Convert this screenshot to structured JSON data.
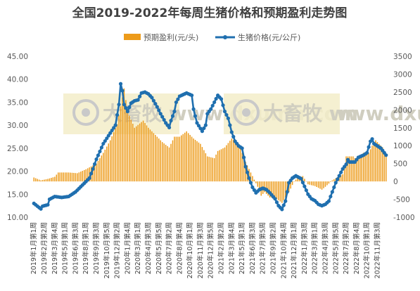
{
  "chart_data": {
    "type": "bar+line",
    "title": "全国2019-2022年每周生猪价格和预期盈利走势图",
    "watermark": "大畜牧 www.dxumu.com",
    "legend": {
      "position": "top",
      "bar_label": "预期盈利(元/头)",
      "line_label": "生猪价格(元/公斤)"
    },
    "y_left": {
      "ticks": [
        "10.00",
        "15.00",
        "20.00",
        "25.00",
        "30.00",
        "35.00",
        "40.00",
        "45.00"
      ],
      "min": 10,
      "max": 45
    },
    "y_right": {
      "ticks": [
        "-1000",
        "-500",
        "0",
        "500",
        "1000",
        "1500",
        "2000",
        "2500",
        "3000",
        "3500"
      ],
      "min": -1000,
      "max": 3500
    },
    "x_tick_labels": [
      "2019年1月第1周",
      "2019年2月第2周",
      "2019年3月第4周",
      "2019年5月第1周",
      "2019年6月第3周",
      "2019年8月第1周",
      "2019年9月第3周",
      "2019年10月第5周",
      "2019年12月第2周",
      "2020年1月第4周",
      "2020年3月第1周",
      "2020年4月第3周",
      "2020年5月第5周",
      "2020年7月第2周",
      "2020年8月第4周",
      "2020年10月第1周",
      "2020年11月第3周",
      "2020年12月第5周",
      "2021年2月第2周",
      "2021年3月第4周",
      "2021年5月第1周",
      "2021年6月第3周",
      "2021年7月第5周",
      "2021年9月第2周",
      "2021年10月第4周",
      "2021年12月第1周",
      "2022年1月第3周",
      "2022年3月第1周",
      "2022年4月第3周",
      "2022年5月第5周",
      "2022年7月第2周",
      "2022年8月第4周",
      "2022年10月第1周",
      "2022年11月第3周"
    ],
    "x_tick_step_weeks": 6,
    "weeks": 204,
    "series": [
      {
        "name": "预期盈利(元/头)",
        "type": "bar",
        "axis": "right",
        "color": "#ED9B1A",
        "keypoints_week_value": [
          [
            0,
            110
          ],
          [
            4,
            30
          ],
          [
            8,
            70
          ],
          [
            12,
            130
          ],
          [
            14,
            250
          ],
          [
            20,
            250
          ],
          [
            25,
            230
          ],
          [
            30,
            340
          ],
          [
            36,
            500
          ],
          [
            40,
            800
          ],
          [
            44,
            1150
          ],
          [
            48,
            1600
          ],
          [
            52,
            2600
          ],
          [
            54,
            1950
          ],
          [
            58,
            1500
          ],
          [
            63,
            1700
          ],
          [
            66,
            1500
          ],
          [
            70,
            1300
          ],
          [
            74,
            1100
          ],
          [
            78,
            950
          ],
          [
            81,
            1250
          ],
          [
            84,
            1250
          ],
          [
            88,
            1400
          ],
          [
            92,
            1200
          ],
          [
            96,
            1050
          ],
          [
            100,
            700
          ],
          [
            104,
            650
          ],
          [
            106,
            850
          ],
          [
            110,
            950
          ],
          [
            114,
            1200
          ],
          [
            118,
            1050
          ],
          [
            122,
            550
          ],
          [
            126,
            150
          ],
          [
            129,
            -150
          ],
          [
            131,
            -400
          ],
          [
            133,
            -300
          ],
          [
            136,
            -450
          ],
          [
            139,
            -450
          ],
          [
            143,
            -600
          ],
          [
            147,
            -300
          ],
          [
            150,
            0
          ],
          [
            152,
            100
          ],
          [
            155,
            150
          ],
          [
            158,
            -80
          ],
          [
            162,
            -130
          ],
          [
            166,
            -230
          ],
          [
            168,
            -150
          ],
          [
            172,
            30
          ],
          [
            175,
            120
          ],
          [
            178,
            200
          ],
          [
            180,
            700
          ],
          [
            184,
            700
          ],
          [
            186,
            600
          ],
          [
            190,
            800
          ],
          [
            193,
            800
          ],
          [
            195,
            1000
          ],
          [
            197,
            1150
          ],
          [
            199,
            1050
          ],
          [
            201,
            950
          ],
          [
            203,
            700
          ]
        ]
      },
      {
        "name": "生猪价格(元/公斤)",
        "type": "line",
        "axis": "left",
        "color": "#1F6FAF",
        "keypoints_week_value": [
          [
            0,
            13.0
          ],
          [
            4,
            11.8
          ],
          [
            5,
            12.4
          ],
          [
            8,
            12.7
          ],
          [
            9,
            13.9
          ],
          [
            12,
            14.5
          ],
          [
            16,
            14.3
          ],
          [
            20,
            14.5
          ],
          [
            24,
            15.5
          ],
          [
            28,
            17.0
          ],
          [
            32,
            18.5
          ],
          [
            34,
            20.5
          ],
          [
            36,
            22.6
          ],
          [
            40,
            26.0
          ],
          [
            44,
            28.3
          ],
          [
            47,
            30.0
          ],
          [
            49,
            34.5
          ],
          [
            50,
            39.0
          ],
          [
            51,
            37.5
          ],
          [
            52,
            34.5
          ],
          [
            54,
            33.0
          ],
          [
            56,
            34.8
          ],
          [
            58,
            35.3
          ],
          [
            60,
            35.5
          ],
          [
            62,
            37.0
          ],
          [
            64,
            37.2
          ],
          [
            66,
            36.8
          ],
          [
            68,
            36.0
          ],
          [
            71,
            34.0
          ],
          [
            73,
            32.5
          ],
          [
            76,
            30.5
          ],
          [
            78,
            29.5
          ],
          [
            79,
            31.0
          ],
          [
            81,
            33.0
          ],
          [
            82,
            35.0
          ],
          [
            84,
            36.3
          ],
          [
            88,
            37.0
          ],
          [
            91,
            36.5
          ],
          [
            92,
            33.5
          ],
          [
            94,
            30.5
          ],
          [
            97,
            28.7
          ],
          [
            99,
            30.0
          ],
          [
            100,
            32.5
          ],
          [
            102,
            33.5
          ],
          [
            104,
            35.0
          ],
          [
            106,
            36.5
          ],
          [
            108,
            35.7
          ],
          [
            110,
            33.0
          ],
          [
            112,
            31.5
          ],
          [
            114,
            28.5
          ],
          [
            116,
            26.5
          ],
          [
            118,
            25.5
          ],
          [
            120,
            25.0
          ],
          [
            122,
            21.0
          ],
          [
            124,
            18.5
          ],
          [
            126,
            16.5
          ],
          [
            128,
            15.3
          ],
          [
            130,
            16.0
          ],
          [
            132,
            16.3
          ],
          [
            134,
            16.0
          ],
          [
            136,
            15.3
          ],
          [
            139,
            14.0
          ],
          [
            141,
            12.5
          ],
          [
            143,
            11.7
          ],
          [
            145,
            13.5
          ],
          [
            147,
            17.5
          ],
          [
            149,
            18.5
          ],
          [
            151,
            19.0
          ],
          [
            154,
            18.4
          ],
          [
            156,
            16.7
          ],
          [
            158,
            15.0
          ],
          [
            160,
            14.0
          ],
          [
            162,
            13.6
          ],
          [
            164,
            12.8
          ],
          [
            166,
            12.5
          ],
          [
            168,
            12.8
          ],
          [
            170,
            13.5
          ],
          [
            172,
            15.5
          ],
          [
            174,
            17.5
          ],
          [
            176,
            19.0
          ],
          [
            178,
            20.5
          ],
          [
            180,
            21.5
          ],
          [
            181,
            22.5
          ],
          [
            182,
            22.0
          ],
          [
            185,
            22.0
          ],
          [
            187,
            23.0
          ],
          [
            190,
            23.5
          ],
          [
            192,
            24.0
          ],
          [
            194,
            26.5
          ],
          [
            195,
            27.0
          ],
          [
            196,
            26.0
          ],
          [
            198,
            25.5
          ],
          [
            200,
            25.0
          ],
          [
            202,
            24.0
          ],
          [
            203,
            23.5
          ]
        ]
      }
    ]
  }
}
